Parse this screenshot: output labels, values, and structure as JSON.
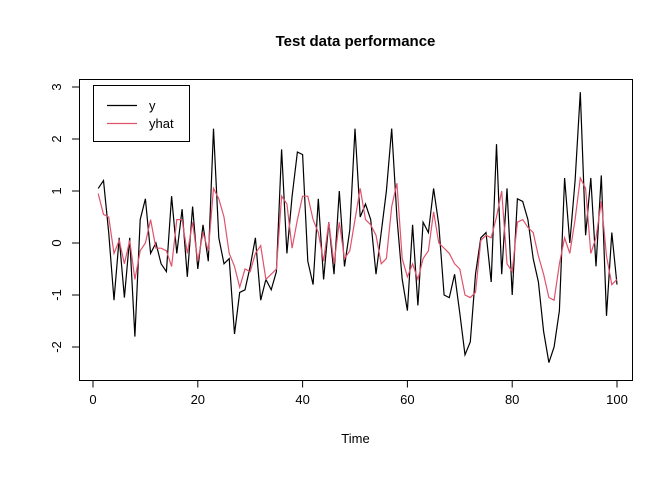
{
  "title": "Test data performance",
  "chart_data": {
    "type": "line",
    "title": "Test data performance",
    "xlabel": "Time",
    "ylabel": "",
    "x_start": 1,
    "xlim": [
      -3,
      104
    ],
    "ylim": [
      -2.6,
      3.15
    ],
    "x_ticks": [
      0,
      20,
      40,
      60,
      80,
      100
    ],
    "y_ticks": [
      -2,
      -1,
      0,
      1,
      2,
      3
    ],
    "grid": false,
    "legend_position": "topleft",
    "background": "#ffffff",
    "series": [
      {
        "name": "y",
        "color": "#000000",
        "values": [
          1.05,
          1.2,
          0.2,
          -1.1,
          0.1,
          -1.05,
          0.1,
          -1.8,
          0.45,
          0.85,
          -0.2,
          0.0,
          -0.4,
          -0.55,
          0.9,
          -0.2,
          0.65,
          -0.65,
          0.7,
          -0.5,
          0.35,
          -0.35,
          2.2,
          0.1,
          -0.4,
          -0.3,
          -1.75,
          -0.95,
          -0.9,
          -0.45,
          0.1,
          -1.1,
          -0.7,
          -0.9,
          -0.55,
          1.8,
          -0.2,
          0.9,
          1.75,
          1.7,
          -0.35,
          -0.8,
          0.85,
          -0.7,
          0.4,
          -0.6,
          1.0,
          -0.45,
          0.25,
          2.2,
          0.5,
          0.75,
          0.45,
          -0.6,
          0.2,
          1.0,
          2.2,
          0.5,
          -0.7,
          -1.3,
          0.35,
          -1.2,
          0.4,
          0.2,
          1.05,
          0.35,
          -1.0,
          -1.05,
          -0.6,
          -1.35,
          -2.15,
          -1.9,
          -0.6,
          0.1,
          0.2,
          -0.75,
          1.9,
          -0.6,
          1.05,
          -1.0,
          0.85,
          0.8,
          0.45,
          -0.3,
          -0.75,
          -1.7,
          -2.3,
          -2.0,
          -1.3,
          1.25,
          0.0,
          1.2,
          2.9,
          0.15,
          1.25,
          -0.45,
          1.3,
          -1.4,
          0.2,
          -0.8
        ]
      },
      {
        "name": "yhat",
        "color": "#DF536B",
        "values": [
          0.95,
          0.55,
          0.5,
          -0.2,
          0.05,
          -0.4,
          0.05,
          -0.7,
          -0.15,
          0.0,
          0.45,
          -0.1,
          -0.1,
          -0.15,
          -0.45,
          0.45,
          0.45,
          -0.2,
          0.4,
          -0.35,
          0.2,
          -0.15,
          1.05,
          0.85,
          0.5,
          -0.2,
          -0.45,
          -0.85,
          -0.5,
          -0.55,
          -0.2,
          -0.05,
          -0.7,
          -0.6,
          -0.5,
          0.9,
          0.75,
          -0.1,
          0.45,
          0.9,
          0.9,
          0.45,
          0.2,
          -0.35,
          0.4,
          -0.4,
          0.4,
          -0.3,
          -0.15,
          0.45,
          1.05,
          0.45,
          0.35,
          0.15,
          -0.4,
          -0.3,
          0.7,
          1.15,
          -0.3,
          -0.65,
          -0.4,
          -0.7,
          -0.3,
          -0.15,
          0.6,
          0.0,
          -0.1,
          -0.2,
          -0.4,
          -0.5,
          -1.0,
          -1.05,
          -0.95,
          0.05,
          0.15,
          0.1,
          0.5,
          1.0,
          -0.4,
          -0.55,
          0.4,
          0.45,
          0.3,
          0.2,
          -0.25,
          -0.6,
          -1.05,
          -1.1,
          -0.4,
          0.1,
          -0.2,
          0.45,
          1.25,
          1.05,
          -0.2,
          0.1,
          0.8,
          -0.25,
          -0.8,
          -0.7
        ]
      }
    ]
  },
  "legend": {
    "entries": [
      {
        "label": "y",
        "color": "#000000"
      },
      {
        "label": "yhat",
        "color": "#DF536B"
      }
    ]
  },
  "x_axis": {
    "label": "Time"
  }
}
